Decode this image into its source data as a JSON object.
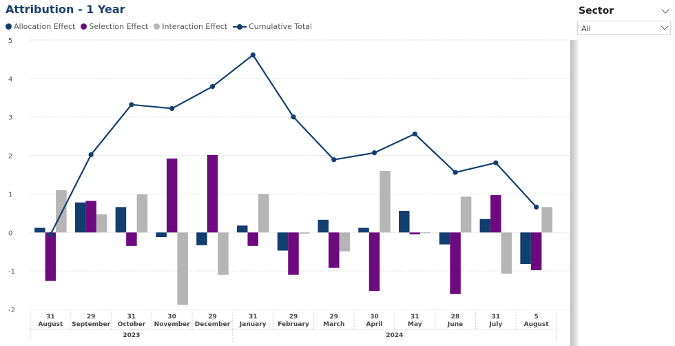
{
  "title": "Attribution - 1 Year",
  "legend": [
    {
      "label": "Allocation Effect",
      "color": "#123e70",
      "kind": "dot"
    },
    {
      "label": "Selection Effect",
      "color": "#6e0a80",
      "kind": "dot"
    },
    {
      "label": "Interaction Effect",
      "color": "#b5b5b5",
      "kind": "dot"
    },
    {
      "label": "Cumulative Total",
      "color": "#123e70",
      "kind": "line"
    }
  ],
  "slicer": {
    "title": "Sector",
    "value": "All",
    "icon": "chevron-down-icon"
  },
  "chart_data": {
    "type": "bar",
    "ylim": [
      -2,
      5
    ],
    "yticks": [
      "5",
      "4",
      "3",
      "2",
      "1",
      "0",
      "-1",
      "-2"
    ],
    "grid": true,
    "legend_position": "top-left",
    "categories": [
      {
        "day": "31",
        "month": "August"
      },
      {
        "day": "29",
        "month": "September"
      },
      {
        "day": "31",
        "month": "October"
      },
      {
        "day": "30",
        "month": "November"
      },
      {
        "day": "29",
        "month": "December"
      },
      {
        "day": "31",
        "month": "January"
      },
      {
        "day": "29",
        "month": "February"
      },
      {
        "day": "29",
        "month": "March"
      },
      {
        "day": "30",
        "month": "April"
      },
      {
        "day": "31",
        "month": "May"
      },
      {
        "day": "28",
        "month": "June"
      },
      {
        "day": "31",
        "month": "July"
      },
      {
        "day": "5",
        "month": "August"
      }
    ],
    "years": [
      {
        "label": "2023",
        "count": 5
      },
      {
        "label": "2024",
        "count": 8
      }
    ],
    "series": [
      {
        "name": "Allocation Effect",
        "type": "bar",
        "color": "#123e70",
        "values": [
          0.12,
          0.78,
          0.66,
          -0.12,
          -0.33,
          0.18,
          -0.47,
          0.33,
          0.12,
          0.56,
          -0.31,
          0.35,
          -0.82
        ]
      },
      {
        "name": "Selection Effect",
        "type": "bar",
        "color": "#6e0a80",
        "values": [
          -1.26,
          0.82,
          -0.35,
          1.92,
          2.01,
          -0.35,
          -1.1,
          -0.92,
          -1.52,
          -0.05,
          -1.6,
          0.97,
          -0.98
        ]
      },
      {
        "name": "Interaction Effect",
        "type": "bar",
        "color": "#b5b5b5",
        "values": [
          1.1,
          0.47,
          0.99,
          -1.88,
          -1.1,
          1.0,
          -0.03,
          -0.49,
          1.6,
          -0.02,
          0.93,
          -1.07,
          0.66
        ]
      },
      {
        "name": "Cumulative Total",
        "type": "line",
        "color": "#123e70",
        "values": [
          -0.05,
          2.02,
          3.32,
          3.22,
          3.79,
          4.61,
          3.0,
          1.89,
          2.07,
          2.56,
          1.56,
          1.81,
          0.66
        ]
      }
    ]
  }
}
